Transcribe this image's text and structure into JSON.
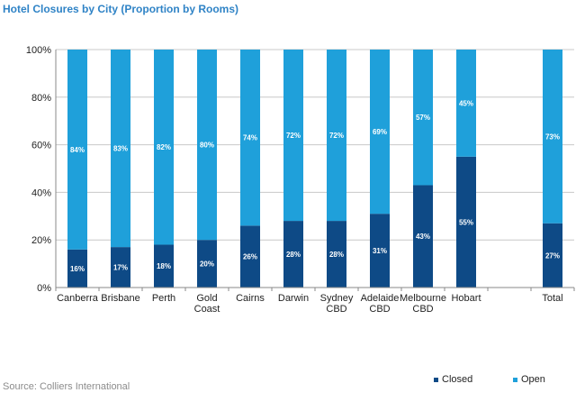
{
  "title": "Hotel Closures by City (Proportion by Rooms)",
  "source": "Source: Colliers International",
  "colors": {
    "closed": "#0e4a86",
    "open": "#1fa0da",
    "title": "#2f83c6",
    "grid": "#c8c8c8"
  },
  "legend": {
    "closed": "Closed",
    "open": "Open"
  },
  "chart_data": {
    "type": "bar",
    "stacked": true,
    "title": "Hotel Closures by City (Proportion by Rooms)",
    "categories": [
      [
        "Canberra"
      ],
      [
        "Brisbane"
      ],
      [
        "Perth"
      ],
      [
        "Gold",
        "Coast"
      ],
      [
        "Cairns"
      ],
      [
        "Darwin"
      ],
      [
        "Sydney",
        "CBD"
      ],
      [
        "Adelaide",
        "CBD"
      ],
      [
        "Melbourne",
        "CBD"
      ],
      [
        "Hobart"
      ],
      [
        ""
      ],
      [
        "Total"
      ]
    ],
    "series": [
      {
        "name": "Closed",
        "values": [
          16,
          17,
          18,
          20,
          26,
          28,
          28,
          31,
          43,
          55,
          null,
          27
        ],
        "labels": [
          "16%",
          "17%",
          "18%",
          "20%",
          "26%",
          "28%",
          "28%",
          "31%",
          "43%",
          "55%",
          "",
          "27%"
        ]
      },
      {
        "name": "Open",
        "values": [
          84,
          83,
          82,
          80,
          74,
          72,
          72,
          69,
          57,
          45,
          null,
          73
        ],
        "labels": [
          "84%",
          "83%",
          "82%",
          "80%",
          "74%",
          "72%",
          "72%",
          "69%",
          "57%",
          "45%",
          "",
          "73%"
        ]
      }
    ],
    "yticks": [
      "0%",
      "20%",
      "40%",
      "60%",
      "80%",
      "100%"
    ],
    "ylim": [
      0,
      100
    ],
    "grid": true,
    "legend_position": "bottom-right"
  }
}
